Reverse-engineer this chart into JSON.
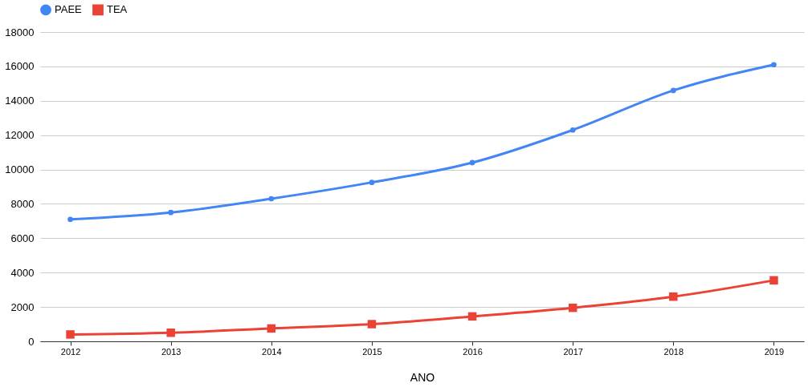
{
  "chart_data": {
    "type": "line",
    "xlabel": "ANO",
    "categories": [
      "2012",
      "2013",
      "2014",
      "2015",
      "2016",
      "2017",
      "2018",
      "2019"
    ],
    "series": [
      {
        "name": "PAEE",
        "color": "#4285f4",
        "marker": "circle",
        "values": [
          7100,
          7500,
          8300,
          9250,
          10400,
          12300,
          14600,
          16100
        ]
      },
      {
        "name": "TEA",
        "color": "#ea4335",
        "marker": "square",
        "values": [
          400,
          500,
          750,
          1000,
          1450,
          1950,
          2600,
          3550
        ]
      }
    ],
    "ylim": [
      0,
      18000
    ],
    "yticks": [
      0,
      2000,
      4000,
      6000,
      8000,
      10000,
      12000,
      14000,
      16000,
      18000
    ],
    "grid": "y",
    "legend": "top"
  }
}
